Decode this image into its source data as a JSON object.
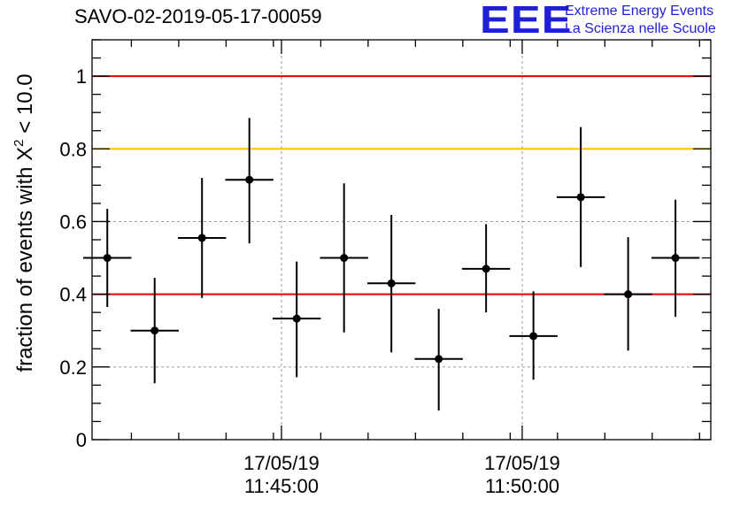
{
  "header": {
    "run_title": "SAVO-02-2019-05-17-00059",
    "logo": {
      "mark": "EEE",
      "line1": "Extreme Energy Events",
      "line2": "La Scienza nelle Scuole",
      "color": "#1f1fd6"
    }
  },
  "chart_data": {
    "type": "scatter",
    "ylabel_prefix": "fraction of events with ",
    "ylabel_symbol": "X",
    "ylabel_exponent": "2",
    "ylabel_suffix": " < 10.0",
    "xlabel": "",
    "ylim": [
      0,
      1.1
    ],
    "y_ticks": [
      0,
      0.2,
      0.4,
      0.6,
      0.8,
      1
    ],
    "y_tick_labels": [
      "0",
      "0.2",
      "0.4",
      "0.6",
      "0.8",
      "1"
    ],
    "x_start": "11:41:04",
    "x_end": "11:53:55",
    "x_major_ticks": [
      {
        "time": "11:45:00",
        "date": "17/05/19",
        "label": "11:45:00"
      },
      {
        "time": "11:50:00",
        "date": "17/05/19",
        "label": "11:50:00"
      }
    ],
    "x_minor_tick_times": [
      "11:41:53",
      "11:42:52",
      "11:43:51",
      "11:44:50",
      "11:45:49",
      "11:46:48",
      "11:47:47",
      "11:48:46",
      "11:49:45",
      "11:50:44",
      "11:51:43",
      "11:52:42",
      "11:53:41"
    ],
    "grid": true,
    "reference_lines": [
      {
        "y": 1.0,
        "color": "#e00000"
      },
      {
        "y": 0.8,
        "color": "#ffc000"
      },
      {
        "y": 0.4,
        "color": "#e00000"
      }
    ],
    "points": [
      {
        "x": "11:41:23",
        "y": 0.5,
        "x_err_s": 30,
        "y_lo": 0.365,
        "y_hi": 0.635
      },
      {
        "x": "11:42:22",
        "y": 0.3,
        "x_err_s": 30,
        "y_lo": 0.155,
        "y_hi": 0.445
      },
      {
        "x": "11:43:21",
        "y": 0.555,
        "x_err_s": 30,
        "y_lo": 0.39,
        "y_hi": 0.72
      },
      {
        "x": "11:44:20",
        "y": 0.715,
        "x_err_s": 30,
        "y_lo": 0.54,
        "y_hi": 0.885
      },
      {
        "x": "11:45:19",
        "y": 0.333,
        "x_err_s": 30,
        "y_lo": 0.172,
        "y_hi": 0.49
      },
      {
        "x": "11:46:18",
        "y": 0.5,
        "x_err_s": 30,
        "y_lo": 0.295,
        "y_hi": 0.705
      },
      {
        "x": "11:47:17",
        "y": 0.43,
        "x_err_s": 30,
        "y_lo": 0.24,
        "y_hi": 0.618
      },
      {
        "x": "11:48:16",
        "y": 0.222,
        "x_err_s": 30,
        "y_lo": 0.08,
        "y_hi": 0.36
      },
      {
        "x": "11:49:15",
        "y": 0.47,
        "x_err_s": 30,
        "y_lo": 0.35,
        "y_hi": 0.593
      },
      {
        "x": "11:50:14",
        "y": 0.285,
        "x_err_s": 30,
        "y_lo": 0.165,
        "y_hi": 0.408
      },
      {
        "x": "11:51:13",
        "y": 0.667,
        "x_err_s": 30,
        "y_lo": 0.475,
        "y_hi": 0.86
      },
      {
        "x": "11:52:12",
        "y": 0.4,
        "x_err_s": 30,
        "y_lo": 0.245,
        "y_hi": 0.557
      },
      {
        "x": "11:53:11",
        "y": 0.5,
        "x_err_s": 30,
        "y_lo": 0.338,
        "y_hi": 0.66
      }
    ]
  }
}
